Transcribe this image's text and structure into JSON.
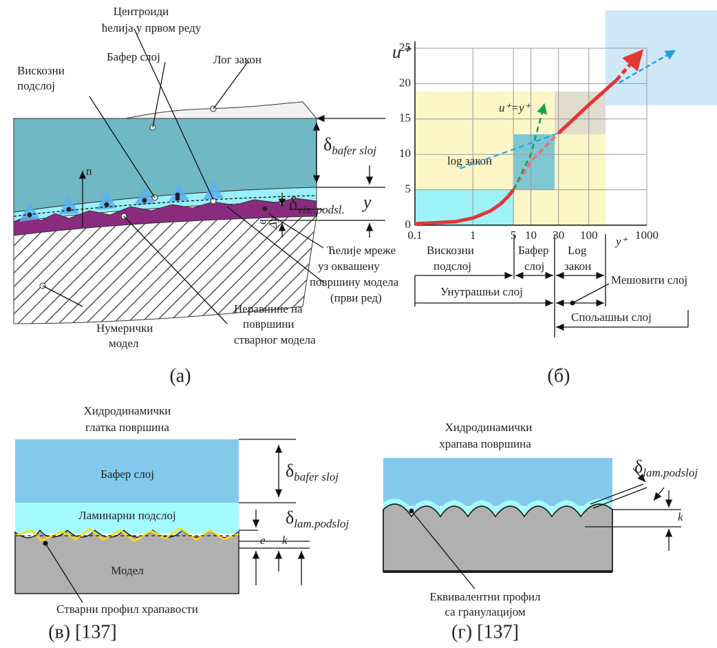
{
  "panel_a": {
    "centroids": [
      "Центроиди",
      "ћелија у првом реду"
    ],
    "viscous": [
      "Вискозни",
      "подслој"
    ],
    "buffer": "Бафер слој",
    "log": "Лог закон",
    "normal": "n",
    "delta_buffer": {
      "symbol": "δ",
      "sub": "bafer sloj"
    },
    "delta_visc": {
      "symbol": "δ",
      "sub": "vis..podsl."
    },
    "y": "y",
    "e": "e",
    "dy": "Δy",
    "cells": [
      "Ћелије мреже",
      "уз оквашену",
      "површину модела",
      "(први ред)"
    ],
    "roughness": [
      "Неравнине на",
      "површини",
      "стварног модела"
    ],
    "numeric": [
      "Нумерички",
      "модел"
    ],
    "caption": "(а)"
  },
  "panel_b": {
    "xlim": [
      0.1,
      1000
    ],
    "ylim": [
      0,
      25
    ],
    "xscale": "log",
    "grid": true,
    "xticks": [
      0.1,
      1,
      5,
      10,
      30,
      100,
      1000
    ],
    "xtick_colors": [
      "#000",
      "#000",
      "#e02020",
      "#000",
      "#e02020",
      "#000",
      "#000"
    ],
    "yticks": [
      0,
      5,
      10,
      15,
      20,
      25
    ],
    "y_label": "u⁺",
    "x_label": "y⁺",
    "equation": "u⁺=y⁺",
    "log_label": "log закон",
    "viscous": [
      "Вискозни",
      "подслој"
    ],
    "buffer": [
      "Бафер",
      "слој"
    ],
    "loglaw": [
      "Log",
      "закон"
    ],
    "inner": "Унутрашњи слој",
    "mixed": "Мешовити слој",
    "outer": "Спољашњи слој",
    "caption": "(б)",
    "curves": [
      {
        "color": "#e53535",
        "width": 5,
        "dash": false,
        "x": [
          0.1,
          0.5,
          1,
          2,
          3,
          4,
          5
        ],
        "values": [
          0.2,
          0.5,
          1,
          2,
          3,
          4,
          5
        ]
      },
      {
        "color": "#e8707a",
        "width": 4,
        "dash": true,
        "x": [
          5,
          10,
          30
        ],
        "values": [
          5,
          9,
          13
        ]
      },
      {
        "color": "#e53535",
        "width": 5,
        "dash": false,
        "x": [
          30,
          100,
          300
        ],
        "values": [
          13,
          17,
          20.5
        ]
      },
      {
        "color": "#e53535",
        "width": 5,
        "dash": true,
        "arrow": true,
        "x": [
          300,
          800
        ],
        "values": [
          20.5,
          24.5
        ]
      },
      {
        "color": "#20a0e0",
        "width": 2,
        "dash": true,
        "x": [
          0.6,
          30
        ],
        "values": [
          8,
          13
        ]
      },
      {
        "color": "#10a050",
        "width": 2.5,
        "dash": true,
        "arrow": true,
        "x": [
          5,
          10,
          17
        ],
        "values": [
          5,
          10,
          17
        ]
      }
    ]
  },
  "panel_c": {
    "title": [
      "Хидродинамички",
      "глатка површина"
    ],
    "buffer": "Бафер слој",
    "laminar": "Ламинарни подслој",
    "model": "Модел",
    "delta_buffer": {
      "symbol": "δ",
      "sub": "bafer sloj"
    },
    "delta_lam": {
      "symbol": "δ",
      "sub": "lam.podsloj"
    },
    "e": "e",
    "k": "k",
    "profile": "Стварни профил храпавости",
    "caption": "(в) [137]"
  },
  "panel_d": {
    "title": [
      "Хидродинамички",
      "храпава површина"
    ],
    "delta_lam": {
      "symbol": "δ",
      "sub": "lam.podsloj"
    },
    "k": "k",
    "profile": [
      "Еквивалентни профил",
      "са гранулацијом"
    ],
    "caption": "(г) [137]"
  }
}
